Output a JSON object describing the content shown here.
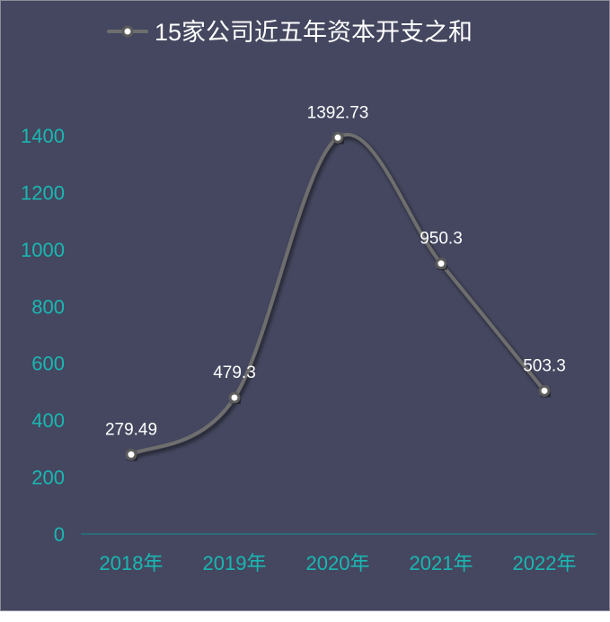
{
  "chart_data": {
    "type": "line",
    "categories": [
      "2018年",
      "2019年",
      "2020年",
      "2021年",
      "2022年"
    ],
    "series": [
      {
        "name": "15家公司近五年资本开支之和",
        "values": [
          279.49,
          479.3,
          1392.73,
          950.3,
          503.3
        ],
        "labels": [
          "279.49",
          "479.3",
          "1392.73",
          "950.3",
          "503.3"
        ]
      }
    ],
    "yticks": [
      "0",
      "200",
      "400",
      "600",
      "800",
      "1000",
      "1200",
      "1400"
    ],
    "ylim": [
      0,
      1400
    ],
    "grid": false,
    "legend_position": "top",
    "line_style": "smooth",
    "colors": {
      "background": "#44475f",
      "line": "#6e6e6e",
      "axis_text": "#1ab7b2",
      "data_label": "#ffffff",
      "legend_text": "#ffffff",
      "marker_fill": "#ffffff",
      "marker_stroke": "#5b5b5b",
      "baseline": "#1a8a90"
    }
  }
}
